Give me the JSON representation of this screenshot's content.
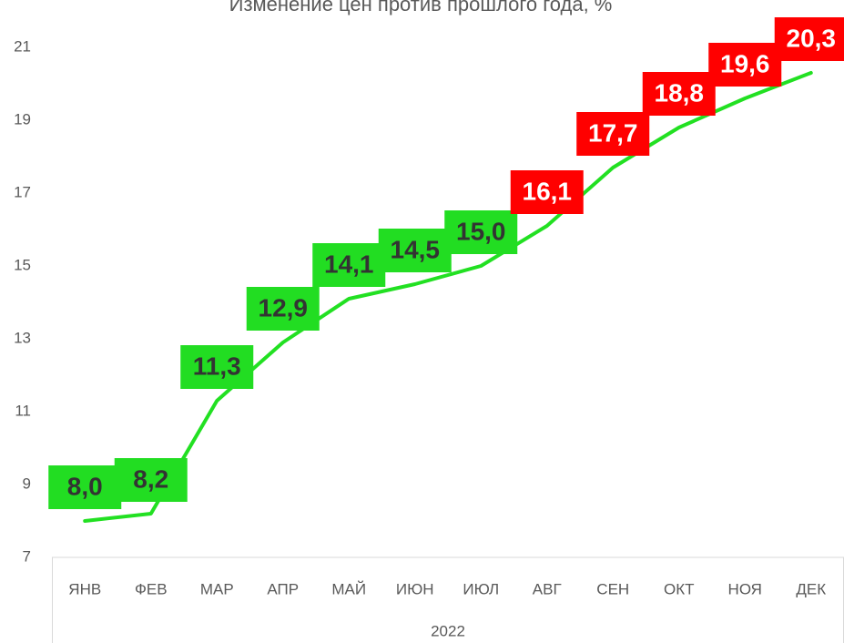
{
  "chart_data": {
    "type": "line",
    "title": "Изменение цен против прошлого года, %",
    "categories": [
      "ЯНВ",
      "ФЕВ",
      "МАР",
      "АПР",
      "МАЙ",
      "ИЮН",
      "ИЮЛ",
      "АВГ",
      "СЕН",
      "ОКТ",
      "НОЯ",
      "ДЕК"
    ],
    "group_label": "2022",
    "values": [
      8.0,
      8.2,
      11.3,
      12.9,
      14.1,
      14.5,
      15.0,
      16.1,
      17.7,
      18.8,
      19.6,
      20.3
    ],
    "value_labels": [
      "8,0",
      "8,2",
      "11,3",
      "12,9",
      "14,1",
      "14,5",
      "15,0",
      "16,1",
      "17,7",
      "18,8",
      "19,6",
      "20,3"
    ],
    "color": "#22e022",
    "label_colors": [
      "#22dd22",
      "#22dd22",
      "#22dd22",
      "#22dd22",
      "#22dd22",
      "#22dd22",
      "#22dd22",
      "#ff0000",
      "#ff0000",
      "#ff0000",
      "#ff0000",
      "#ff0000"
    ],
    "label_text_colors": [
      "#333333",
      "#333333",
      "#333333",
      "#333333",
      "#333333",
      "#333333",
      "#333333",
      "#ffffff",
      "#ffffff",
      "#ffffff",
      "#ffffff",
      "#ffffff"
    ],
    "ylim": [
      7,
      21
    ],
    "yticks": [
      7,
      9,
      11,
      13,
      15,
      17,
      19,
      21
    ],
    "grid": false
  }
}
